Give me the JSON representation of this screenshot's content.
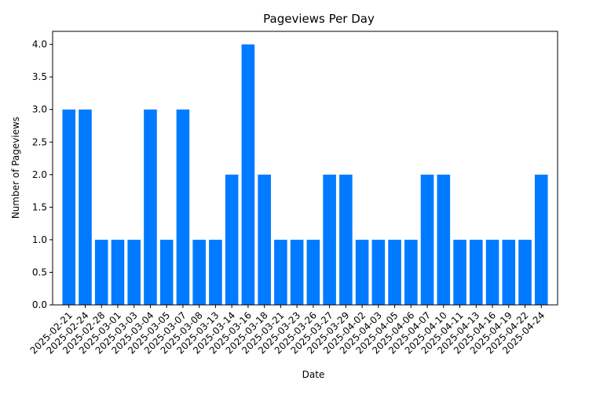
{
  "colors": {
    "bar": "#007bff",
    "axis": "#000000",
    "background": "#ffffff"
  },
  "chart_data": {
    "type": "bar",
    "title": "Pageviews Per Day",
    "xlabel": "Date",
    "ylabel": "Number of Pageviews",
    "ylim": [
      0,
      4.2
    ],
    "grid": false,
    "yticks": [
      "0.0",
      "0.5",
      "1.0",
      "1.5",
      "2.0",
      "2.5",
      "3.0",
      "3.5",
      "4.0"
    ],
    "categories": [
      "2025-02-21",
      "2025-02-24",
      "2025-02-28",
      "2025-03-01",
      "2025-03-03",
      "2025-03-04",
      "2025-03-05",
      "2025-03-07",
      "2025-03-08",
      "2025-03-13",
      "2025-03-14",
      "2025-03-16",
      "2025-03-18",
      "2025-03-21",
      "2025-03-23",
      "2025-03-26",
      "2025-03-27",
      "2025-03-29",
      "2025-04-02",
      "2025-04-03",
      "2025-04-05",
      "2025-04-06",
      "2025-04-07",
      "2025-04-10",
      "2025-04-11",
      "2025-04-13",
      "2025-04-16",
      "2025-04-19",
      "2025-04-22",
      "2025-04-24"
    ],
    "values": [
      3,
      3,
      1,
      1,
      1,
      3,
      1,
      3,
      1,
      1,
      2,
      4,
      2,
      1,
      1,
      1,
      2,
      2,
      1,
      1,
      1,
      1,
      2,
      2,
      1,
      1,
      1,
      1,
      1,
      2
    ]
  }
}
